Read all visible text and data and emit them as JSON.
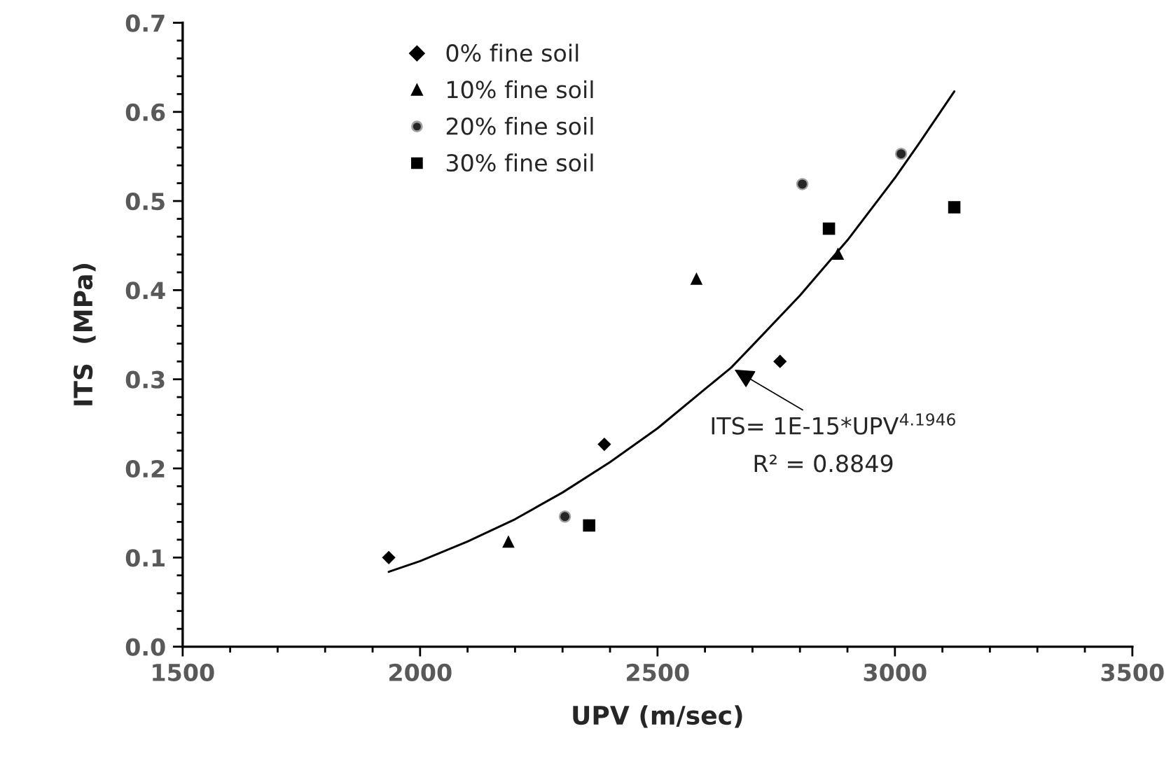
{
  "chart_data": {
    "type": "scatter",
    "xlabel": "UPV (m/sec)",
    "ylabel": "ITS  (MPa)",
    "xlim": [
      1500,
      3500
    ],
    "xticks": [
      1500,
      2000,
      2500,
      3000,
      3500
    ],
    "ylim": [
      0,
      0.7
    ],
    "yticks": [
      {
        "value": 0,
        "label": "0.0"
      },
      0.1,
      0.2,
      0.3,
      0.4,
      0.5,
      0.6,
      0.7
    ],
    "grid": false,
    "legend": "top left",
    "series": [
      {
        "name": "0% fine soil",
        "marker": "diamond",
        "color": "#000000",
        "x": [
          1934,
          2388,
          2758
        ],
        "values": [
          0.1,
          0.227,
          0.32
        ]
      },
      {
        "name": "10% fine soil",
        "marker": "triangle",
        "color": "#000000",
        "x": [
          2186,
          2582,
          2880
        ],
        "values": [
          0.118,
          0.413,
          0.441
        ]
      },
      {
        "name": "20% fine soil",
        "marker": "circle",
        "color": "#262626",
        "x": [
          2305,
          2805,
          3013
        ],
        "values": [
          0.146,
          0.519,
          0.553
        ]
      },
      {
        "name": "30% fine soil",
        "marker": "square",
        "color": "#000000",
        "x": [
          2356,
          2861,
          3125
        ],
        "values": [
          0.136,
          0.469,
          0.493
        ]
      },
      {
        "type": "line",
        "marker": "none",
        "line_style": "solid",
        "color": "#000000",
        "x": [
          1934,
          2000,
          2100,
          2200,
          2300,
          2400,
          2500,
          2600,
          2655,
          2700,
          2800,
          2900,
          3000,
          3050,
          3125
        ],
        "values": [
          0.084,
          0.096,
          0.118,
          0.143,
          0.173,
          0.207,
          0.245,
          0.289,
          0.313,
          0.338,
          0.394,
          0.456,
          0.526,
          0.564,
          0.623
        ]
      }
    ],
    "annotations": [
      {
        "text": "ITS= 1E-15*UPV$^{4.1946}$",
        "x": 2655,
        "y": 0.313
      },
      "R² = 0.8849"
    ]
  }
}
